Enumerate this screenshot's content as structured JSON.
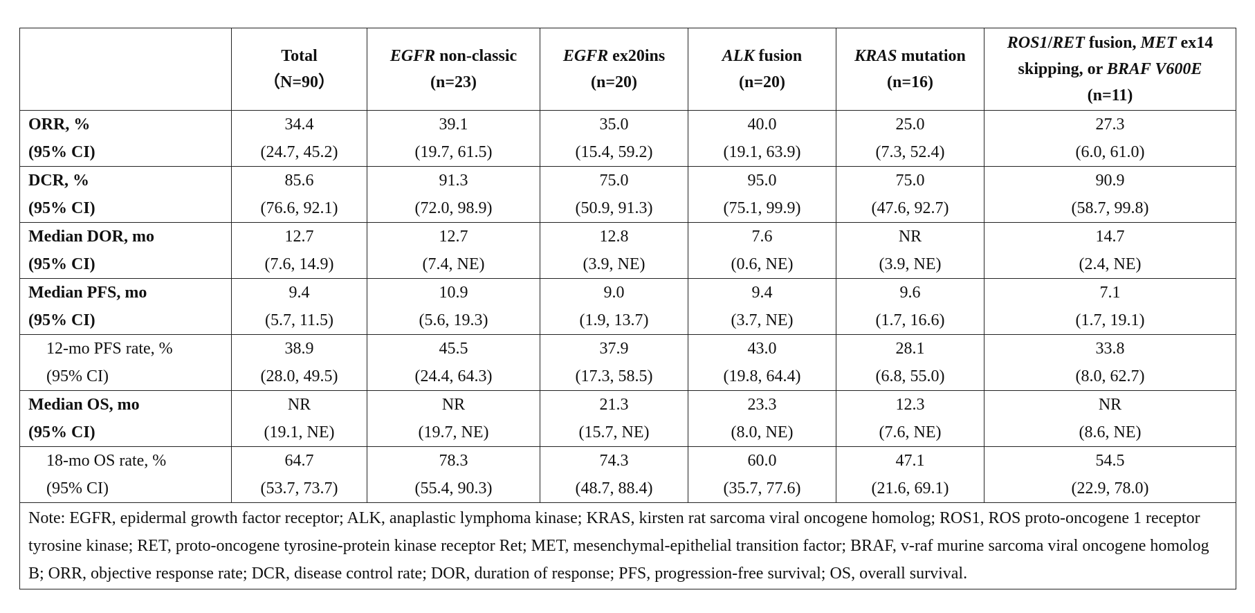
{
  "columns": [
    {
      "gene": "",
      "rest": "Total",
      "n": "（N=90）"
    },
    {
      "gene": "EGFR",
      "rest": " non-classic",
      "n": "(n=23)"
    },
    {
      "gene": "EGFR",
      "rest": " ex20ins",
      "n": "(n=20)"
    },
    {
      "gene": "ALK",
      "rest": " fusion",
      "n": "(n=20)"
    },
    {
      "gene": "KRAS",
      "rest": " mutation",
      "n": "(n=16)"
    }
  ],
  "last_column": {
    "g1": "ROS1",
    "sep1": "/",
    "g2": "RET",
    "t1": " fusion, ",
    "g3": "MET",
    "t2": " ex14",
    "t3": "skipping, or ",
    "g4": "BRAF V600E",
    "n": "(n=11)"
  },
  "rows": [
    {
      "label1": "ORR, %",
      "label2": "(95% CI)",
      "style": "bold",
      "cells": [
        [
          "34.4",
          "(24.7, 45.2)"
        ],
        [
          "39.1",
          "(19.7, 61.5)"
        ],
        [
          "35.0",
          "(15.4, 59.2)"
        ],
        [
          "40.0",
          "(19.1, 63.9)"
        ],
        [
          "25.0",
          "(7.3, 52.4)"
        ],
        [
          "27.3",
          "(6.0, 61.0)"
        ]
      ]
    },
    {
      "label1": "DCR, %",
      "label2": "(95% CI)",
      "style": "bold",
      "cells": [
        [
          "85.6",
          "(76.6, 92.1)"
        ],
        [
          "91.3",
          "(72.0, 98.9)"
        ],
        [
          "75.0",
          "(50.9, 91.3)"
        ],
        [
          "95.0",
          "(75.1, 99.9)"
        ],
        [
          "75.0",
          "(47.6, 92.7)"
        ],
        [
          "90.9",
          "(58.7, 99.8)"
        ]
      ]
    },
    {
      "label1": "Median DOR, mo",
      "label2": "(95% CI)",
      "style": "bold",
      "cells": [
        [
          "12.7",
          "(7.6, 14.9)"
        ],
        [
          "12.7",
          "(7.4, NE)"
        ],
        [
          "12.8",
          "(3.9, NE)"
        ],
        [
          "7.6",
          "(0.6, NE)"
        ],
        [
          "NR",
          "(3.9, NE)"
        ],
        [
          "14.7",
          "(2.4, NE)"
        ]
      ]
    },
    {
      "label1": "Median PFS, mo",
      "label2": "(95% CI)",
      "style": "bold",
      "cells": [
        [
          "9.4",
          "(5.7, 11.5)"
        ],
        [
          "10.9",
          "(5.6, 19.3)"
        ],
        [
          "9.0",
          "(1.9, 13.7)"
        ],
        [
          "9.4",
          "(3.7, NE)"
        ],
        [
          "9.6",
          "(1.7, 16.6)"
        ],
        [
          "7.1",
          "(1.7, 19.1)"
        ]
      ]
    },
    {
      "label1": "12-mo PFS rate, %",
      "label2": "(95% CI)",
      "style": "indent",
      "cells": [
        [
          "38.9",
          "(28.0, 49.5)"
        ],
        [
          "45.5",
          "(24.4, 64.3)"
        ],
        [
          "37.9",
          "(17.3, 58.5)"
        ],
        [
          "43.0",
          "(19.8, 64.4)"
        ],
        [
          "28.1",
          "(6.8, 55.0)"
        ],
        [
          "33.8",
          "(8.0, 62.7)"
        ]
      ]
    },
    {
      "label1": "Median OS, mo",
      "label2": "(95% CI)",
      "style": "bold",
      "cells": [
        [
          "NR",
          "(19.1, NE)"
        ],
        [
          "NR",
          "(19.7, NE)"
        ],
        [
          "21.3",
          "(15.7, NE)"
        ],
        [
          "23.3",
          "(8.0, NE)"
        ],
        [
          "12.3",
          "(7.6, NE)"
        ],
        [
          "NR",
          "(8.6, NE)"
        ]
      ]
    },
    {
      "label1": "18-mo OS rate, %",
      "label2": "(95% CI)",
      "style": "indent",
      "cells": [
        [
          "64.7",
          "(53.7, 73.7)"
        ],
        [
          "78.3",
          "(55.4, 90.3)"
        ],
        [
          "74.3",
          "(48.7, 88.4)"
        ],
        [
          "60.0",
          "(35.7, 77.6)"
        ],
        [
          "47.1",
          "(21.6, 69.1)"
        ],
        [
          "54.5",
          "(22.9, 78.0)"
        ]
      ]
    }
  ],
  "note": "Note: EGFR, epidermal growth factor receptor; ALK, anaplastic lymphoma kinase; KRAS, kirsten rat sarcoma viral oncogene homolog; ROS1, ROS proto-oncogene 1 receptor tyrosine kinase; RET, proto-oncogene tyrosine-protein kinase receptor Ret; MET, mesenchymal-epithelial transition factor; BRAF, v-raf murine sarcoma viral oncogene homolog B; ORR, objective response rate; DCR, disease control rate; DOR, duration of response; PFS, progression-free survival; OS, overall survival."
}
